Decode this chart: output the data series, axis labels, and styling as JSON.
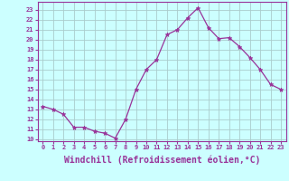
{
  "x": [
    0,
    1,
    2,
    3,
    4,
    5,
    6,
    7,
    8,
    9,
    10,
    11,
    12,
    13,
    14,
    15,
    16,
    17,
    18,
    19,
    20,
    21,
    22,
    23
  ],
  "y": [
    13.3,
    13.0,
    12.5,
    11.2,
    11.2,
    10.8,
    10.6,
    10.1,
    12.0,
    15.0,
    17.0,
    18.0,
    20.5,
    21.0,
    22.2,
    23.2,
    21.2,
    20.1,
    20.2,
    19.3,
    18.2,
    17.0,
    15.5,
    15.0
  ],
  "line_color": "#993399",
  "marker": "*",
  "marker_size": 3.5,
  "xlabel": "Windchill (Refroidissement éolien,°C)",
  "xlabel_fontsize": 7,
  "ylabel_ticks": [
    10,
    11,
    12,
    13,
    14,
    15,
    16,
    17,
    18,
    19,
    20,
    21,
    22,
    23
  ],
  "xlim": [
    -0.5,
    23.5
  ],
  "ylim": [
    9.8,
    23.8
  ],
  "xtick_labels": [
    "0",
    "1",
    "2",
    "3",
    "4",
    "5",
    "6",
    "7",
    "8",
    "9",
    "10",
    "11",
    "12",
    "13",
    "14",
    "15",
    "16",
    "17",
    "18",
    "19",
    "20",
    "21",
    "22",
    "23"
  ],
  "background_color": "#ccffff",
  "grid_color": "#aacccc",
  "tick_color": "#993399",
  "label_color": "#993399",
  "spine_color": "#993399"
}
